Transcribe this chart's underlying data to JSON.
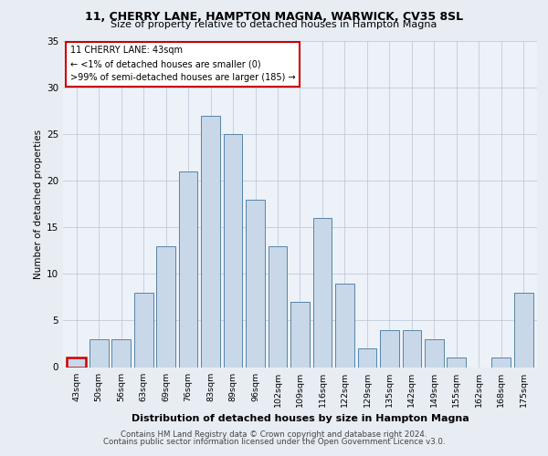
{
  "title1": "11, CHERRY LANE, HAMPTON MAGNA, WARWICK, CV35 8SL",
  "title2": "Size of property relative to detached houses in Hampton Magna",
  "xlabel": "Distribution of detached houses by size in Hampton Magna",
  "ylabel": "Number of detached properties",
  "categories": [
    "43sqm",
    "50sqm",
    "56sqm",
    "63sqm",
    "69sqm",
    "76sqm",
    "83sqm",
    "89sqm",
    "96sqm",
    "102sqm",
    "109sqm",
    "116sqm",
    "122sqm",
    "129sqm",
    "135sqm",
    "142sqm",
    "149sqm",
    "155sqm",
    "162sqm",
    "168sqm",
    "175sqm"
  ],
  "values": [
    1,
    3,
    3,
    8,
    13,
    21,
    27,
    25,
    18,
    13,
    7,
    16,
    9,
    2,
    4,
    4,
    3,
    1,
    0,
    1,
    8
  ],
  "bar_color": "#c8d8e8",
  "bar_edge_color": "#5585a8",
  "highlight_bar_index": 0,
  "highlight_edge_color": "#cc0000",
  "annotation_title": "11 CHERRY LANE: 43sqm",
  "annotation_line1": "← <1% of detached houses are smaller (0)",
  "annotation_line2": ">99% of semi-detached houses are larger (185) →",
  "annotation_box_color": "#ffffff",
  "annotation_box_edge": "#cc0000",
  "ylim": [
    0,
    35
  ],
  "yticks": [
    0,
    5,
    10,
    15,
    20,
    25,
    30,
    35
  ],
  "bg_color": "#e8edf4",
  "plot_bg_color": "#edf1f8",
  "footer1": "Contains HM Land Registry data © Crown copyright and database right 2024.",
  "footer2": "Contains public sector information licensed under the Open Government Licence v3.0."
}
